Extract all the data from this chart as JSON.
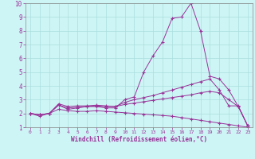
{
  "xlabel": "Windchill (Refroidissement éolien,°C)",
  "bg_color": "#cef5f5",
  "line_color": "#993399",
  "grid_color": "#aadddd",
  "grid_color2": "#bbeeee",
  "xlim": [
    -0.5,
    23.5
  ],
  "ylim": [
    1,
    10
  ],
  "yticks": [
    1,
    2,
    3,
    4,
    5,
    6,
    7,
    8,
    9,
    10
  ],
  "xticks": [
    0,
    1,
    2,
    3,
    4,
    5,
    6,
    7,
    8,
    9,
    10,
    11,
    12,
    13,
    14,
    15,
    16,
    17,
    18,
    19,
    20,
    21,
    22,
    23
  ],
  "curve1_x": [
    0,
    1,
    2,
    3,
    4,
    5,
    6,
    7,
    8,
    9,
    10,
    11,
    12,
    13,
    14,
    15,
    16,
    17,
    18,
    19,
    20,
    21,
    22,
    23
  ],
  "curve1_y": [
    2.0,
    1.8,
    2.0,
    2.6,
    2.3,
    2.4,
    2.5,
    2.5,
    2.4,
    2.4,
    3.0,
    3.2,
    5.0,
    6.2,
    7.2,
    8.9,
    9.0,
    10.0,
    8.0,
    4.7,
    4.5,
    3.7,
    2.5,
    1.1
  ],
  "curve2_x": [
    0,
    1,
    2,
    3,
    4,
    5,
    6,
    7,
    8,
    9,
    10,
    11,
    12,
    13,
    14,
    15,
    16,
    17,
    18,
    19,
    20,
    21,
    22,
    23
  ],
  "curve2_y": [
    2.0,
    1.9,
    2.0,
    2.7,
    2.5,
    2.55,
    2.55,
    2.6,
    2.55,
    2.5,
    2.8,
    3.0,
    3.15,
    3.3,
    3.5,
    3.7,
    3.9,
    4.1,
    4.3,
    4.5,
    3.7,
    2.55,
    2.55,
    1.1
  ],
  "curve3_x": [
    0,
    1,
    2,
    3,
    4,
    5,
    6,
    7,
    8,
    9,
    10,
    11,
    12,
    13,
    14,
    15,
    16,
    17,
    18,
    19,
    20,
    21,
    22,
    23
  ],
  "curve3_y": [
    2.0,
    1.9,
    2.0,
    2.6,
    2.4,
    2.45,
    2.5,
    2.55,
    2.5,
    2.5,
    2.65,
    2.75,
    2.85,
    2.95,
    3.05,
    3.15,
    3.25,
    3.35,
    3.5,
    3.6,
    3.5,
    3.0,
    2.5,
    1.1
  ],
  "curve4_x": [
    0,
    1,
    2,
    3,
    4,
    5,
    6,
    7,
    8,
    9,
    10,
    11,
    12,
    13,
    14,
    15,
    16,
    17,
    18,
    19,
    20,
    21,
    22,
    23
  ],
  "curve4_y": [
    2.0,
    1.9,
    2.0,
    2.3,
    2.2,
    2.15,
    2.15,
    2.2,
    2.15,
    2.1,
    2.05,
    2.0,
    1.95,
    1.9,
    1.85,
    1.8,
    1.7,
    1.6,
    1.5,
    1.4,
    1.3,
    1.2,
    1.1,
    1.0
  ]
}
